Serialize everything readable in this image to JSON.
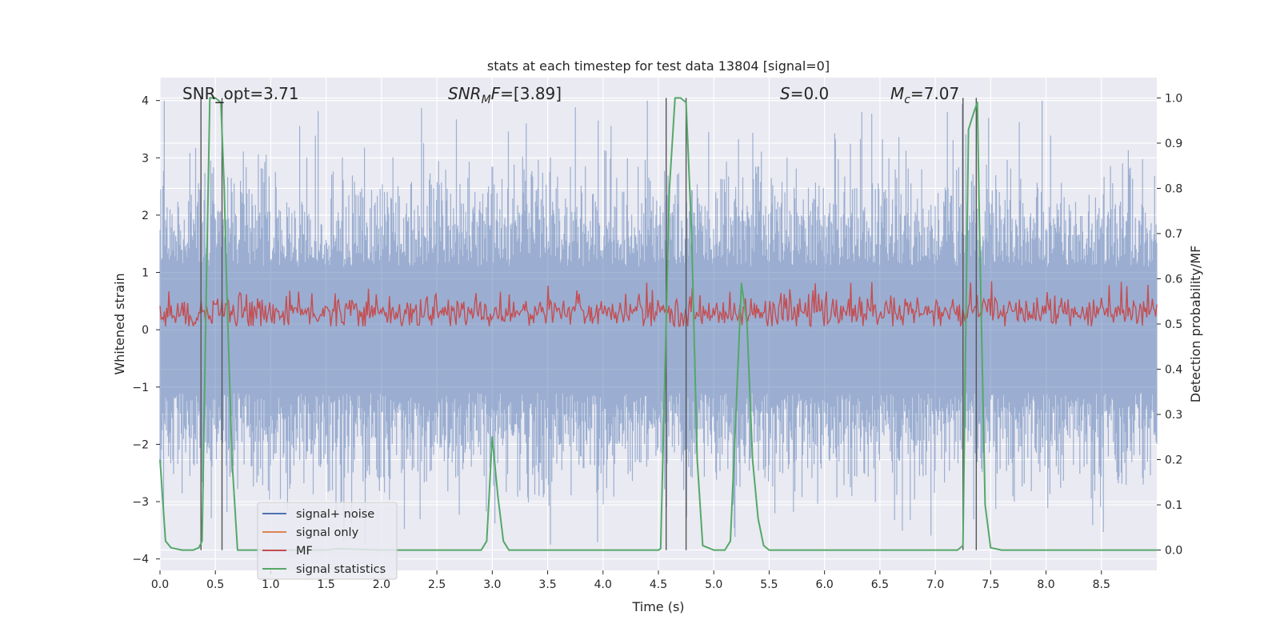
{
  "chart_data": {
    "type": "line",
    "title": "stats at each timestep for test data 13804 [signal=0]",
    "xlabel": "Time (s)",
    "ylabel_left": "Whitened strain",
    "ylabel_right": "Detection probability/MF",
    "xlim": [
      0,
      9.0
    ],
    "ylim_left": [
      -4.2,
      4.4
    ],
    "ylim_right": [
      -0.045,
      1.045
    ],
    "x_ticks": [
      "0.0",
      "0.5",
      "1.0",
      "1.5",
      "2.0",
      "2.5",
      "3.0",
      "3.5",
      "4.0",
      "4.5",
      "5.0",
      "5.5",
      "6.0",
      "6.5",
      "7.0",
      "7.5",
      "8.0",
      "8.5"
    ],
    "y_left_ticks": [
      "4",
      "3",
      "2",
      "1",
      "0",
      "−1",
      "−2",
      "−3",
      "−4"
    ],
    "y_right_ticks": [
      "1.0",
      "0.9",
      "0.8",
      "0.7",
      "0.6",
      "0.5",
      "0.4",
      "0.3",
      "0.2",
      "0.1",
      "0.0"
    ],
    "grid": true,
    "legend_position": "lower-left",
    "annotations": [
      {
        "key": "snr_opt",
        "text": "SNR_opt=3.71",
        "x": 0.18
      },
      {
        "key": "snr_mf",
        "text": "=[3.89]",
        "x": 2.6
      },
      {
        "key": "s_stat",
        "text": "=0.0",
        "x": 5.6
      },
      {
        "key": "mc",
        "text": "=7.07",
        "x": 6.6
      }
    ],
    "series": [
      {
        "name": "signal+ noise",
        "color": "#4c72b0",
        "axis": "left",
        "description": "whitened strain noise, approx. range -3.7 to 4.0"
      },
      {
        "name": "signal only",
        "color": "#dd8452",
        "axis": "left",
        "values": []
      },
      {
        "name": "MF",
        "color": "#c44e52",
        "axis": "right",
        "description": "matched filter output, approx. 0.49 to 0.6"
      },
      {
        "name": "signal statistics",
        "color": "#55a868",
        "axis": "right",
        "x": [
          0.0,
          0.05,
          0.1,
          0.2,
          0.3,
          0.35,
          0.38,
          0.42,
          0.45,
          0.5,
          0.55,
          0.58,
          0.6,
          0.65,
          0.7,
          0.75,
          1.0,
          1.5,
          1.6,
          2.0,
          2.5,
          2.9,
          2.95,
          3.0,
          3.05,
          3.1,
          3.15,
          3.2,
          3.5,
          4.0,
          4.5,
          4.52,
          4.55,
          4.6,
          4.65,
          4.7,
          4.75,
          4.8,
          4.85,
          4.9,
          5.0,
          5.1,
          5.15,
          5.2,
          5.25,
          5.3,
          5.35,
          5.4,
          5.45,
          5.5,
          6.0,
          6.5,
          7.0,
          7.2,
          7.25,
          7.3,
          7.35,
          7.38,
          7.4,
          7.45,
          7.5,
          7.6,
          8.0,
          8.5,
          9.0
        ],
        "values": [
          0.2,
          0.02,
          0.005,
          0.0,
          0.0,
          0.005,
          0.02,
          0.6,
          1.0,
          1.0,
          0.99,
          0.8,
          0.6,
          0.2,
          0.0,
          0.0,
          0.0,
          0.0,
          0.003,
          0.0,
          0.0,
          0.0,
          0.02,
          0.25,
          0.12,
          0.02,
          0.0,
          0.0,
          0.0,
          0.0,
          0.0,
          0.003,
          0.3,
          0.8,
          1.0,
          1.0,
          0.99,
          0.7,
          0.2,
          0.01,
          0.0,
          0.0,
          0.02,
          0.3,
          0.59,
          0.5,
          0.2,
          0.07,
          0.01,
          0.0,
          0.0,
          0.0,
          0.0,
          0.0,
          0.01,
          0.93,
          0.97,
          0.99,
          0.7,
          0.1,
          0.005,
          0.0,
          0.0,
          0.0,
          0.0
        ]
      }
    ],
    "vertical_lines_x": [
      0.37,
      0.56,
      4.57,
      4.75,
      7.25,
      7.37
    ]
  }
}
